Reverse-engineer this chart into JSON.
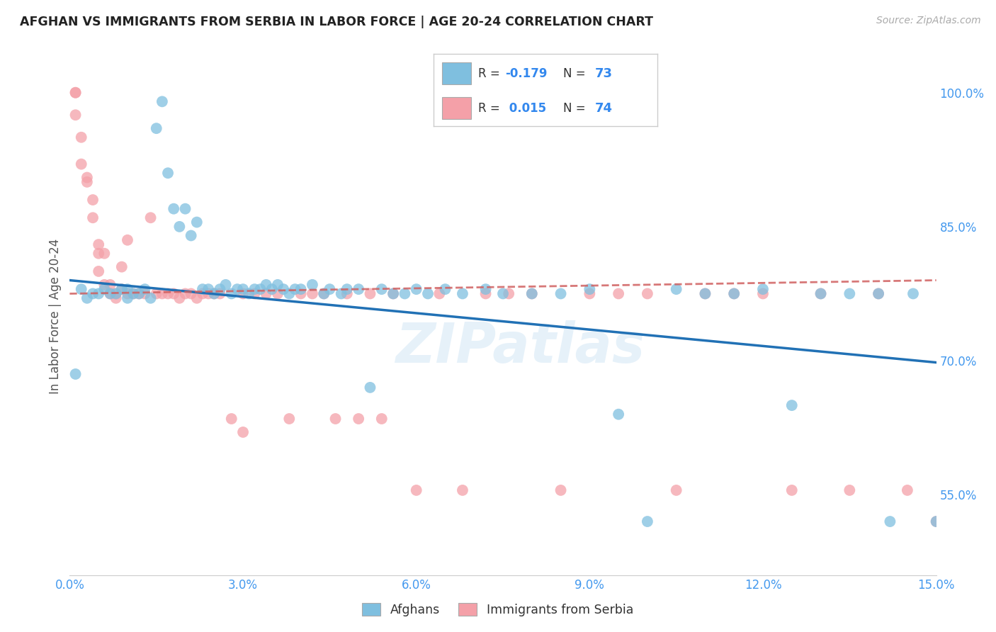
{
  "title": "AFGHAN VS IMMIGRANTS FROM SERBIA IN LABOR FORCE | AGE 20-24 CORRELATION CHART",
  "source": "Source: ZipAtlas.com",
  "ylabel": "In Labor Force | Age 20-24",
  "xlim": [
    0.0,
    0.15
  ],
  "ylim": [
    0.46,
    1.04
  ],
  "xticks": [
    0.0,
    0.03,
    0.06,
    0.09,
    0.12,
    0.15
  ],
  "xtick_labels": [
    "0.0%",
    "3.0%",
    "6.0%",
    "9.0%",
    "12.0%",
    "15.0%"
  ],
  "yticks": [
    0.55,
    0.7,
    0.85,
    1.0
  ],
  "ytick_labels": [
    "55.0%",
    "70.0%",
    "85.0%",
    "100.0%"
  ],
  "grid_color": "#cccccc",
  "background_color": "#ffffff",
  "blue_color": "#7fbfdf",
  "pink_color": "#f4a0a8",
  "blue_line_color": "#2171b5",
  "pink_line_color": "#d06060",
  "watermark": "ZIPatlas",
  "legend_R_blue": "-0.179",
  "legend_N_blue": "73",
  "legend_R_pink": "0.015",
  "legend_N_pink": "74",
  "legend_label_blue": "Afghans",
  "legend_label_pink": "Immigrants from Serbia",
  "blue_x": [
    0.001,
    0.002,
    0.003,
    0.004,
    0.005,
    0.006,
    0.007,
    0.008,
    0.009,
    0.01,
    0.01,
    0.011,
    0.012,
    0.013,
    0.014,
    0.015,
    0.016,
    0.017,
    0.018,
    0.019,
    0.02,
    0.021,
    0.022,
    0.023,
    0.024,
    0.025,
    0.026,
    0.027,
    0.028,
    0.029,
    0.03,
    0.031,
    0.032,
    0.033,
    0.034,
    0.035,
    0.036,
    0.037,
    0.038,
    0.039,
    0.04,
    0.042,
    0.044,
    0.045,
    0.047,
    0.048,
    0.05,
    0.052,
    0.054,
    0.056,
    0.058,
    0.06,
    0.062,
    0.065,
    0.068,
    0.072,
    0.075,
    0.08,
    0.085,
    0.09,
    0.095,
    0.1,
    0.105,
    0.11,
    0.115,
    0.12,
    0.125,
    0.13,
    0.135,
    0.14,
    0.142,
    0.146,
    0.15
  ],
  "blue_y": [
    0.685,
    0.78,
    0.77,
    0.775,
    0.775,
    0.78,
    0.775,
    0.775,
    0.78,
    0.77,
    0.78,
    0.775,
    0.775,
    0.78,
    0.77,
    0.96,
    0.99,
    0.91,
    0.87,
    0.85,
    0.87,
    0.84,
    0.855,
    0.78,
    0.78,
    0.775,
    0.78,
    0.785,
    0.775,
    0.78,
    0.78,
    0.775,
    0.78,
    0.78,
    0.785,
    0.78,
    0.785,
    0.78,
    0.775,
    0.78,
    0.78,
    0.785,
    0.775,
    0.78,
    0.775,
    0.78,
    0.78,
    0.67,
    0.78,
    0.775,
    0.775,
    0.78,
    0.775,
    0.78,
    0.775,
    0.78,
    0.775,
    0.775,
    0.775,
    0.78,
    0.64,
    0.52,
    0.78,
    0.775,
    0.775,
    0.78,
    0.65,
    0.775,
    0.775,
    0.775,
    0.52,
    0.775,
    0.52
  ],
  "pink_x": [
    0.001,
    0.001,
    0.001,
    0.002,
    0.002,
    0.003,
    0.003,
    0.004,
    0.004,
    0.005,
    0.005,
    0.005,
    0.006,
    0.006,
    0.007,
    0.007,
    0.008,
    0.008,
    0.009,
    0.009,
    0.01,
    0.01,
    0.011,
    0.012,
    0.013,
    0.014,
    0.015,
    0.016,
    0.017,
    0.018,
    0.019,
    0.02,
    0.021,
    0.022,
    0.023,
    0.024,
    0.025,
    0.026,
    0.028,
    0.03,
    0.03,
    0.032,
    0.034,
    0.036,
    0.038,
    0.04,
    0.042,
    0.044,
    0.046,
    0.048,
    0.05,
    0.052,
    0.054,
    0.056,
    0.06,
    0.064,
    0.068,
    0.072,
    0.076,
    0.08,
    0.085,
    0.09,
    0.095,
    0.1,
    0.105,
    0.11,
    0.115,
    0.12,
    0.125,
    0.13,
    0.135,
    0.14,
    0.145,
    0.15
  ],
  "pink_y": [
    1.0,
    1.0,
    0.975,
    0.95,
    0.92,
    0.9,
    0.905,
    0.88,
    0.86,
    0.82,
    0.8,
    0.83,
    0.785,
    0.82,
    0.775,
    0.785,
    0.77,
    0.775,
    0.78,
    0.805,
    0.775,
    0.835,
    0.775,
    0.775,
    0.775,
    0.86,
    0.775,
    0.775,
    0.775,
    0.775,
    0.77,
    0.775,
    0.775,
    0.77,
    0.775,
    0.775,
    0.775,
    0.775,
    0.635,
    0.775,
    0.62,
    0.775,
    0.775,
    0.775,
    0.635,
    0.775,
    0.775,
    0.775,
    0.635,
    0.775,
    0.635,
    0.775,
    0.635,
    0.775,
    0.555,
    0.775,
    0.555,
    0.775,
    0.775,
    0.775,
    0.555,
    0.775,
    0.775,
    0.775,
    0.555,
    0.775,
    0.775,
    0.775,
    0.555,
    0.775,
    0.555,
    0.775,
    0.555,
    0.52
  ]
}
